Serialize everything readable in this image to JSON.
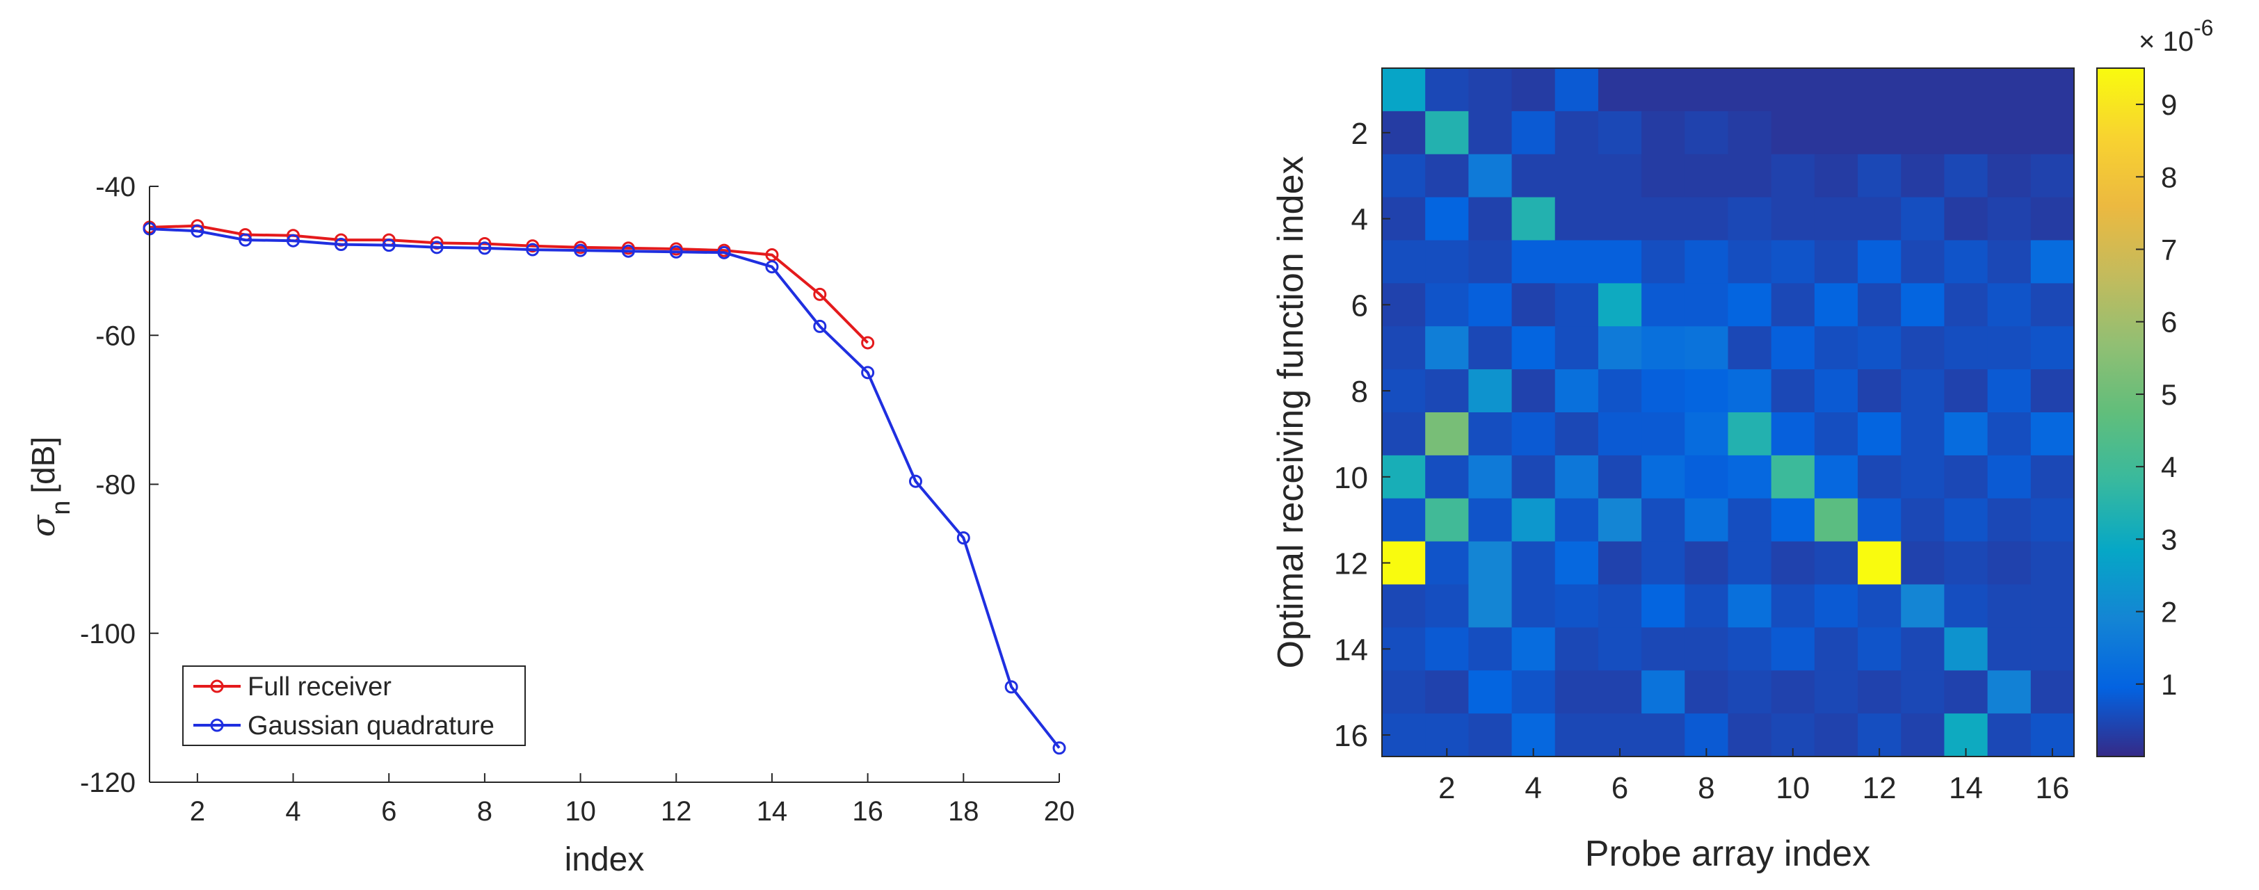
{
  "chart_data": [
    {
      "type": "line",
      "title": "",
      "xlabel": "index",
      "ylabel": "σ",
      "ylabel_subscript": "n",
      "ylabel_unit": "[dB]",
      "xlim": [
        1,
        20
      ],
      "ylim": [
        -120,
        -40
      ],
      "xticks": [
        2,
        4,
        6,
        8,
        10,
        12,
        14,
        16,
        18,
        20
      ],
      "yticks": [
        -40,
        -60,
        -80,
        -100,
        -120
      ],
      "grid": false,
      "legend_position": "bottom-left",
      "series": [
        {
          "name": "Full receiver",
          "color": "#e41a1c",
          "x": [
            1,
            2,
            3,
            4,
            5,
            6,
            7,
            8,
            9,
            10,
            11,
            12,
            13,
            14,
            15,
            16
          ],
          "y": [
            -45.5,
            -45.3,
            -46.5,
            -46.6,
            -47.2,
            -47.2,
            -47.6,
            -47.7,
            -48.0,
            -48.2,
            -48.3,
            -48.4,
            -48.6,
            -49.2,
            -54.5,
            -61.0
          ]
        },
        {
          "name": "Gaussian quadrature",
          "color": "#1f2fe0",
          "x": [
            1,
            2,
            3,
            4,
            5,
            6,
            7,
            8,
            9,
            10,
            11,
            12,
            13,
            14,
            15,
            16,
            17,
            18,
            19,
            20
          ],
          "y": [
            -45.7,
            -46.0,
            -47.2,
            -47.3,
            -47.8,
            -47.9,
            -48.2,
            -48.3,
            -48.5,
            -48.6,
            -48.7,
            -48.8,
            -48.9,
            -50.8,
            -58.8,
            -65.0,
            -79.6,
            -87.2,
            -107.2,
            -115.4
          ]
        }
      ]
    },
    {
      "type": "heatmap",
      "title": "",
      "xlabel": "Probe array index",
      "ylabel": "Optimal receiving function index",
      "xticks": [
        2,
        4,
        6,
        8,
        10,
        12,
        14,
        16
      ],
      "yticks": [
        2,
        4,
        6,
        8,
        10,
        12,
        14,
        16
      ],
      "grid": false,
      "colorbar": {
        "ticks": [
          1,
          2,
          3,
          4,
          5,
          6,
          7,
          8,
          9
        ],
        "multiplier_base": "× 10",
        "multiplier_exponent": "-6",
        "range": [
          0,
          9.5
        ]
      },
      "rows": 16,
      "cols": 16,
      "values": [
        [
          2.8,
          0.5,
          0.4,
          0.3,
          0.8,
          0.2,
          0.2,
          0.2,
          0.2,
          0.2,
          0.2,
          0.2,
          0.2,
          0.2,
          0.2,
          0.2
        ],
        [
          0.3,
          3.4,
          0.4,
          0.8,
          0.4,
          0.5,
          0.3,
          0.4,
          0.3,
          0.2,
          0.2,
          0.2,
          0.2,
          0.2,
          0.2,
          0.2
        ],
        [
          0.6,
          0.4,
          1.6,
          0.4,
          0.4,
          0.4,
          0.3,
          0.3,
          0.3,
          0.4,
          0.3,
          0.5,
          0.3,
          0.5,
          0.3,
          0.4
        ],
        [
          0.4,
          1.0,
          0.4,
          3.4,
          0.4,
          0.4,
          0.4,
          0.4,
          0.5,
          0.4,
          0.4,
          0.4,
          0.6,
          0.3,
          0.4,
          0.3
        ],
        [
          0.6,
          0.6,
          0.5,
          0.9,
          0.9,
          0.9,
          0.6,
          0.8,
          0.6,
          0.7,
          0.5,
          0.9,
          0.5,
          0.7,
          0.5,
          1.2
        ],
        [
          0.4,
          0.7,
          0.9,
          0.4,
          0.6,
          3.0,
          0.8,
          0.8,
          1.0,
          0.5,
          1.0,
          0.5,
          1.0,
          0.5,
          0.7,
          0.5
        ],
        [
          0.5,
          1.7,
          0.5,
          1.0,
          0.6,
          1.6,
          1.3,
          1.4,
          0.5,
          0.9,
          0.6,
          0.7,
          0.5,
          0.6,
          0.6,
          0.7
        ],
        [
          0.6,
          0.5,
          2.3,
          0.4,
          1.3,
          0.7,
          0.9,
          1.0,
          1.2,
          0.5,
          0.8,
          0.4,
          0.6,
          0.4,
          0.8,
          0.4
        ],
        [
          0.5,
          5.2,
          0.6,
          0.8,
          0.5,
          0.8,
          0.8,
          1.2,
          3.4,
          0.9,
          0.6,
          1.0,
          0.6,
          1.2,
          0.6,
          1.1
        ],
        [
          3.2,
          0.6,
          1.6,
          0.5,
          1.5,
          0.5,
          1.2,
          0.9,
          1.1,
          3.9,
          1.1,
          0.5,
          0.6,
          0.5,
          0.8,
          0.5
        ],
        [
          0.7,
          4.0,
          0.7,
          2.4,
          0.7,
          1.9,
          0.6,
          1.3,
          0.6,
          1.0,
          4.6,
          0.8,
          0.5,
          0.7,
          0.5,
          0.6
        ],
        [
          9.5,
          0.7,
          1.9,
          0.6,
          1.1,
          0.4,
          0.6,
          0.4,
          0.6,
          0.4,
          0.5,
          9.5,
          0.4,
          0.5,
          0.4,
          0.5
        ],
        [
          0.5,
          0.6,
          1.9,
          0.6,
          0.7,
          0.6,
          1.0,
          0.6,
          1.3,
          0.6,
          0.8,
          0.6,
          1.9,
          0.6,
          0.5,
          0.5
        ],
        [
          0.6,
          0.8,
          0.6,
          1.2,
          0.5,
          0.6,
          0.5,
          0.5,
          0.6,
          0.8,
          0.5,
          0.7,
          0.5,
          2.3,
          0.5,
          0.5
        ],
        [
          0.5,
          0.4,
          1.0,
          0.7,
          0.4,
          0.4,
          1.4,
          0.4,
          0.5,
          0.4,
          0.5,
          0.4,
          0.5,
          0.4,
          1.8,
          0.4
        ],
        [
          0.6,
          0.6,
          0.5,
          1.1,
          0.5,
          0.5,
          0.5,
          0.8,
          0.4,
          0.5,
          0.4,
          0.6,
          0.4,
          3.0,
          0.5,
          0.7
        ]
      ]
    }
  ]
}
